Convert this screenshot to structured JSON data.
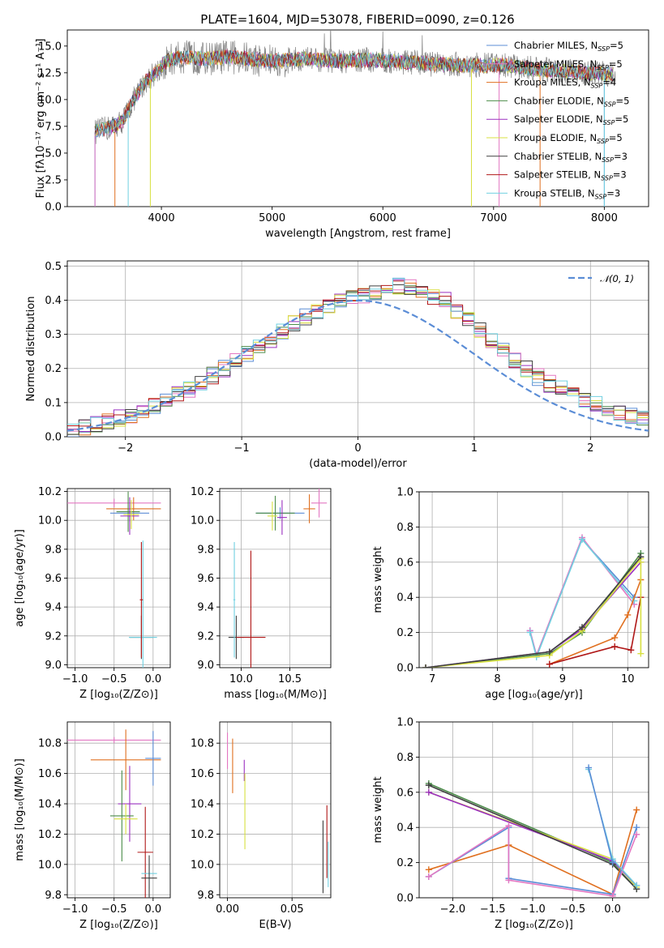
{
  "figure_title": "PLATE=1604, MJD=53078, FIBERID=0090, z=0.126",
  "colors": {
    "Chabrier MILES": "#5b8dd6",
    "Salpeter MILES": "#e377c2",
    "Kroupa MILES": "#e07020",
    "Chabrier ELODIE": "#4c8c4a",
    "Salpeter ELODIE": "#9b30c0",
    "Kroupa ELODIE": "#d8e040",
    "Chabrier STELIB": "#404040",
    "Salpeter STELIB": "#b01818",
    "Kroupa STELIB": "#70d0e0",
    "data": "#808080",
    "gaussian": "#5b8dd6"
  },
  "chart_data": [
    {
      "id": "spectrum",
      "type": "line",
      "title": "PLATE=1604, MJD=53078, FIBERID=0090, z=0.126",
      "xlabel": "wavelength [Angstrom, rest frame]",
      "ylabel": "Flux [fλ10⁻¹⁷ erg cm⁻² s⁻¹ A⁻¹]",
      "xlim": [
        3150,
        8400
      ],
      "ylim": [
        0,
        16.5
      ],
      "xticks": [
        "4000",
        "5000",
        "6000",
        "7000",
        "8000"
      ],
      "yticks": [
        "0.0",
        "2.5",
        "5.0",
        "7.5",
        "10.0",
        "12.5",
        "15.0"
      ],
      "legend_position": "right",
      "legend": [
        {
          "prefix": "Chabrier MILES, N",
          "sub": "SSP",
          "suffix": "=5"
        },
        {
          "prefix": "Salpeter MILES, N",
          "sub": "SSP",
          "suffix": "=5"
        },
        {
          "prefix": "Kroupa MILES, N",
          "sub": "SSP",
          "suffix": "=4"
        },
        {
          "prefix": "Chabrier ELODIE, N",
          "sub": "SSP",
          "suffix": "=5"
        },
        {
          "prefix": "Salpeter ELODIE, N",
          "sub": "SSP",
          "suffix": "=5"
        },
        {
          "prefix": "Kroupa ELODIE, N",
          "sub": "SSP",
          "suffix": "=5"
        },
        {
          "prefix": "Chabrier STELIB, N",
          "sub": "SSP",
          "suffix": "=3"
        },
        {
          "prefix": "Salpeter STELIB, N",
          "sub": "SSP",
          "suffix": "=3"
        },
        {
          "prefix": "Kroupa STELIB, N",
          "sub": "SSP",
          "suffix": "=3"
        }
      ],
      "continuum": [
        [
          3400,
          7.0
        ],
        [
          3550,
          7.4
        ],
        [
          3650,
          8.0
        ],
        [
          3750,
          10.0
        ],
        [
          3850,
          11.6
        ],
        [
          3950,
          12.6
        ],
        [
          4050,
          13.6
        ],
        [
          4200,
          14.0
        ],
        [
          4400,
          13.8
        ],
        [
          4600,
          14.0
        ],
        [
          4800,
          13.8
        ],
        [
          5000,
          13.6
        ],
        [
          5300,
          13.8
        ],
        [
          5600,
          13.6
        ],
        [
          5900,
          13.7
        ],
        [
          6200,
          13.5
        ],
        [
          6500,
          13.3
        ],
        [
          6800,
          13.2
        ],
        [
          7100,
          13.2
        ],
        [
          7400,
          12.8
        ],
        [
          7700,
          12.6
        ],
        [
          8000,
          12.4
        ],
        [
          8100,
          12.3
        ]
      ]
    },
    {
      "id": "residuals",
      "type": "histogram",
      "xlabel": "(data-model)/error",
      "ylabel": "Normed distribution",
      "xlim": [
        -2.5,
        2.5
      ],
      "ylim": [
        0,
        0.515
      ],
      "xticks": [
        "−2",
        "−1",
        "0",
        "1",
        "2"
      ],
      "yticks": [
        "0.0",
        "0.1",
        "0.2",
        "0.3",
        "0.4",
        "0.5"
      ],
      "legend": "𝒩(0, 1)",
      "legend_position": "top-right",
      "bin_width": 0.1,
      "bins_start": -2.5,
      "base_values": [
        0.022,
        0.027,
        0.035,
        0.045,
        0.055,
        0.065,
        0.078,
        0.092,
        0.105,
        0.122,
        0.14,
        0.158,
        0.18,
        0.2,
        0.22,
        0.24,
        0.26,
        0.285,
        0.31,
        0.33,
        0.35,
        0.37,
        0.385,
        0.395,
        0.405,
        0.415,
        0.42,
        0.43,
        0.44,
        0.44,
        0.42,
        0.41,
        0.4,
        0.37,
        0.34,
        0.31,
        0.28,
        0.25,
        0.225,
        0.2,
        0.175,
        0.155,
        0.14,
        0.125,
        0.11,
        0.095,
        0.085,
        0.07,
        0.06,
        0.05
      ]
    },
    {
      "id": "age-vs-Z",
      "type": "errorbar",
      "xlabel": "Z [log₁₀(Z/Z⊙)]",
      "ylabel": "age  [log₁₀(age/yr)]",
      "xlim": [
        -1.1,
        0.22
      ],
      "ylim": [
        8.98,
        10.22
      ],
      "xticks": [
        "−1.0",
        "−0.5",
        "0.0"
      ],
      "yticks": [
        "9.0",
        "9.2",
        "9.4",
        "9.6",
        "9.8",
        "10.0",
        "10.2"
      ],
      "points": [
        {
          "model": "Salpeter MILES",
          "x": -0.5,
          "y": 10.12,
          "xerr": 0.6,
          "yerr": 0.03
        },
        {
          "model": "Kroupa MILES",
          "x": -0.25,
          "y": 10.08,
          "xerr": 0.35,
          "yerr": 0.08
        },
        {
          "model": "Chabrier MILES",
          "x": -0.3,
          "y": 10.05,
          "xerr": 0.25,
          "yerr": 0.06
        },
        {
          "model": "Chabrier ELODIE",
          "x": -0.32,
          "y": 10.06,
          "xerr": 0.15,
          "yerr": 0.14
        },
        {
          "model": "Salpeter ELODIE",
          "x": -0.3,
          "y": 10.03,
          "xerr": 0.12,
          "yerr": 0.13
        },
        {
          "model": "Kroupa ELODIE",
          "x": -0.28,
          "y": 10.04,
          "xerr": 0.1,
          "yerr": 0.1
        },
        {
          "model": "Chabrier STELIB",
          "x": -0.15,
          "y": 9.19,
          "xerr": 0.15,
          "yerr": 0.15
        },
        {
          "model": "Kroupa STELIB",
          "x": -0.13,
          "y": 9.19,
          "xerr": 0.18,
          "yerr": 0.67
        },
        {
          "model": "Salpeter STELIB",
          "x": -0.15,
          "y": 9.45,
          "xerr": 0.02,
          "yerr": 0.4
        }
      ]
    },
    {
      "id": "age-vs-mass",
      "type": "errorbar",
      "xlabel": "mass [log₁₀(M/M⊙)]",
      "ylabel": "",
      "xlim": [
        9.78,
        10.92
      ],
      "ylim": [
        8.98,
        10.22
      ],
      "xticks": [
        "10.0",
        "10.5"
      ],
      "yticks": [
        "9.0",
        "9.2",
        "9.4",
        "9.6",
        "9.8",
        "10.0",
        "10.2"
      ],
      "points": [
        {
          "model": "Salpeter MILES",
          "x": 10.8,
          "y": 10.12,
          "xerr": 0.08,
          "yerr": 0.1
        },
        {
          "model": "Kroupa MILES",
          "x": 10.7,
          "y": 10.08,
          "xerr": 0.06,
          "yerr": 0.1
        },
        {
          "model": "Chabrier MILES",
          "x": 10.4,
          "y": 10.05,
          "xerr": 0.25,
          "yerr": 0.04
        },
        {
          "model": "Chabrier ELODIE",
          "x": 10.35,
          "y": 10.05,
          "xerr": 0.2,
          "yerr": 0.12
        },
        {
          "model": "Salpeter ELODIE",
          "x": 10.42,
          "y": 10.02,
          "xerr": 0.05,
          "yerr": 0.12
        },
        {
          "model": "Kroupa ELODIE",
          "x": 10.32,
          "y": 10.03,
          "xerr": 0.05,
          "yerr": 0.1
        },
        {
          "model": "Chabrier STELIB",
          "x": 9.95,
          "y": 9.19,
          "xerr": 0.08,
          "yerr": 0.15
        },
        {
          "model": "Kroupa STELIB",
          "x": 9.93,
          "y": 9.45,
          "xerr": 0.01,
          "yerr": 0.4
        },
        {
          "model": "Salpeter STELIB",
          "x": 10.1,
          "y": 9.19,
          "xerr": 0.15,
          "yerr": 0.6
        }
      ]
    },
    {
      "id": "massweight-vs-age",
      "type": "line",
      "xlabel": "age  [log₁₀(age/yr)]",
      "ylabel": "mass weight",
      "xlim": [
        6.8,
        10.32
      ],
      "ylim": [
        0,
        1.0
      ],
      "xticks": [
        "7",
        "8",
        "9",
        "10"
      ],
      "yticks": [
        "0.0",
        "0.2",
        "0.4",
        "0.6",
        "0.8",
        "1.0"
      ],
      "series": [
        {
          "model": "Chabrier MILES",
          "x": [
            8.5,
            8.6,
            9.3,
            10.1
          ],
          "y": [
            0.21,
            0.07,
            0.73,
            0.4
          ]
        },
        {
          "model": "Salpeter MILES",
          "x": [
            8.5,
            8.6,
            9.3,
            10.1
          ],
          "y": [
            0.21,
            0.07,
            0.74,
            0.36
          ]
        },
        {
          "model": "Kroupa STELIB",
          "x": [
            8.5,
            8.6,
            9.3,
            10.1
          ],
          "y": [
            0.2,
            0.06,
            0.73,
            0.38
          ]
        },
        {
          "model": "Kroupa MILES",
          "x": [
            8.8,
            9.8,
            10.0,
            10.2
          ],
          "y": [
            0.02,
            0.17,
            0.3,
            0.5
          ]
        },
        {
          "model": "Chabrier ELODIE",
          "x": [
            6.9,
            8.8,
            9.3,
            10.2
          ],
          "y": [
            0.0,
            0.08,
            0.2,
            0.65
          ]
        },
        {
          "model": "Salpeter ELODIE",
          "x": [
            6.9,
            8.8,
            9.3,
            10.2
          ],
          "y": [
            0.0,
            0.09,
            0.22,
            0.6
          ]
        },
        {
          "model": "Kroupa ELODIE",
          "x": [
            6.9,
            8.8,
            9.3,
            10.2
          ],
          "y": [
            0.0,
            0.07,
            0.21,
            0.62
          ]
        },
        {
          "model": "Chabrier STELIB",
          "x": [
            6.9,
            8.8,
            9.3,
            10.2
          ],
          "y": [
            0.0,
            0.09,
            0.23,
            0.63
          ]
        },
        {
          "model": "Salpeter STELIB",
          "x": [
            8.8,
            9.8,
            10.05,
            10.2
          ],
          "y": [
            0.02,
            0.12,
            0.1,
            0.4
          ]
        },
        {
          "model": "Kroupa ELODIE",
          "x": [
            10.2,
            10.2
          ],
          "y": [
            0.08,
            0.6
          ]
        }
      ]
    },
    {
      "id": "mass-vs-Z",
      "type": "errorbar",
      "xlabel": "Z [log₁₀(Z/Z⊙)]",
      "ylabel": "mass [log₁₀(M/M⊙)]",
      "xlim": [
        -1.1,
        0.22
      ],
      "ylim": [
        9.78,
        10.94
      ],
      "xticks": [
        "−1.0",
        "−0.5",
        "0.0"
      ],
      "yticks": [
        "9.8",
        "10.0",
        "10.2",
        "10.4",
        "10.6",
        "10.8"
      ],
      "points": [
        {
          "model": "Salpeter MILES",
          "x": -0.5,
          "y": 10.82,
          "xerr": 0.6,
          "yerr": 0.02
        },
        {
          "model": "Kroupa MILES",
          "x": -0.35,
          "y": 10.69,
          "xerr": 0.45,
          "yerr": 0.2
        },
        {
          "model": "Chabrier MILES",
          "x": 0.0,
          "y": 10.7,
          "xerr": 0.1,
          "yerr": 0.18
        },
        {
          "model": "Salpeter ELODIE",
          "x": -0.3,
          "y": 10.4,
          "xerr": 0.15,
          "yerr": 0.25
        },
        {
          "model": "Chabrier ELODIE",
          "x": -0.4,
          "y": 10.32,
          "xerr": 0.15,
          "yerr": 0.3
        },
        {
          "model": "Kroupa ELODIE",
          "x": -0.35,
          "y": 10.3,
          "xerr": 0.15,
          "yerr": 0.1
        },
        {
          "model": "Salpeter STELIB",
          "x": -0.1,
          "y": 10.08,
          "xerr": 0.1,
          "yerr": 0.3
        },
        {
          "model": "Kroupa STELIB",
          "x": -0.05,
          "y": 9.94,
          "xerr": 0.1,
          "yerr": 0.1
        },
        {
          "model": "Chabrier STELIB",
          "x": -0.05,
          "y": 9.91,
          "xerr": 0.1,
          "yerr": 0.15
        }
      ]
    },
    {
      "id": "mass-vs-EBV",
      "type": "errorbar",
      "xlabel": "E(B-V)",
      "ylabel": "",
      "xlim": [
        -0.006,
        0.08
      ],
      "ylim": [
        9.78,
        10.94
      ],
      "xticks": [
        "0.00",
        "0.05"
      ],
      "yticks": [
        "9.8",
        "10.0",
        "10.2",
        "10.4",
        "10.6",
        "10.8"
      ],
      "points": [
        {
          "model": "Salpeter MILES",
          "x": 0.0,
          "y": 10.75,
          "xerr": 0,
          "yerr": 0.12
        },
        {
          "model": "Kroupa MILES",
          "x": 0.004,
          "y": 10.65,
          "xerr": 0,
          "yerr": 0.18
        },
        {
          "model": "Salpeter ELODIE",
          "x": 0.013,
          "y": 10.62,
          "xerr": 0,
          "yerr": 0.07
        },
        {
          "model": "Kroupa ELODIE",
          "x": 0.0135,
          "y": 10.35,
          "xerr": 0,
          "yerr": 0.25
        },
        {
          "model": "Chabrier STELIB",
          "x": 0.074,
          "y": 10.05,
          "xerr": 0,
          "yerr": 0.24
        },
        {
          "model": "Salpeter STELIB",
          "x": 0.077,
          "y": 10.15,
          "xerr": 0,
          "yerr": 0.24
        },
        {
          "model": "Kroupa STELIB",
          "x": 0.078,
          "y": 10.0,
          "xerr": 0,
          "yerr": 0.15
        }
      ]
    },
    {
      "id": "massweight-vs-Z",
      "type": "line",
      "xlabel": "Z [log₁₀(Z/Z⊙)]",
      "ylabel": "mass weight",
      "xlim": [
        -2.42,
        0.45
      ],
      "ylim": [
        0,
        1.0
      ],
      "xticks": [
        "−2.0",
        "−1.5",
        "−1.0",
        "−0.5",
        "0.0"
      ],
      "yticks": [
        "0.0",
        "0.2",
        "0.4",
        "0.6",
        "0.8",
        "1.0"
      ],
      "series": [
        {
          "model": "Chabrier ELODIE",
          "x": [
            -2.3,
            0.0,
            0.3
          ],
          "y": [
            0.65,
            0.2,
            0.05
          ]
        },
        {
          "model": "Kroupa ELODIE",
          "x": [
            -2.3,
            0.0,
            0.3
          ],
          "y": [
            0.6,
            0.22,
            0.06
          ]
        },
        {
          "model": "Salpeter ELODIE",
          "x": [
            -2.3,
            0.0,
            0.3
          ],
          "y": [
            0.6,
            0.21,
            0.07
          ]
        },
        {
          "model": "Chabrier STELIB",
          "x": [
            -2.3,
            0.0,
            0.3
          ],
          "y": [
            0.64,
            0.19,
            0.05
          ]
        },
        {
          "model": "Kroupa MILES",
          "x": [
            -2.3,
            -1.3,
            0.0,
            0.3
          ],
          "y": [
            0.16,
            0.3,
            0.02,
            0.5
          ]
        },
        {
          "model": "Chabrier MILES",
          "x": [
            -2.3,
            -1.3,
            -1.3,
            0.0,
            0.3
          ],
          "y": [
            0.12,
            0.4,
            0.11,
            0.02,
            0.4
          ]
        },
        {
          "model": "Salpeter MILES",
          "x": [
            -2.3,
            -1.3,
            -1.3,
            0.0,
            0.3
          ],
          "y": [
            0.12,
            0.41,
            0.1,
            0.01,
            0.36
          ]
        },
        {
          "model": "Kroupa STELIB",
          "x": [
            -0.3,
            0.0,
            0.3
          ],
          "y": [
            0.73,
            0.22,
            0.07
          ]
        },
        {
          "model": "Chabrier MILES",
          "x": [
            -0.3,
            0.0
          ],
          "y": [
            0.74,
            0.2
          ]
        }
      ]
    }
  ]
}
